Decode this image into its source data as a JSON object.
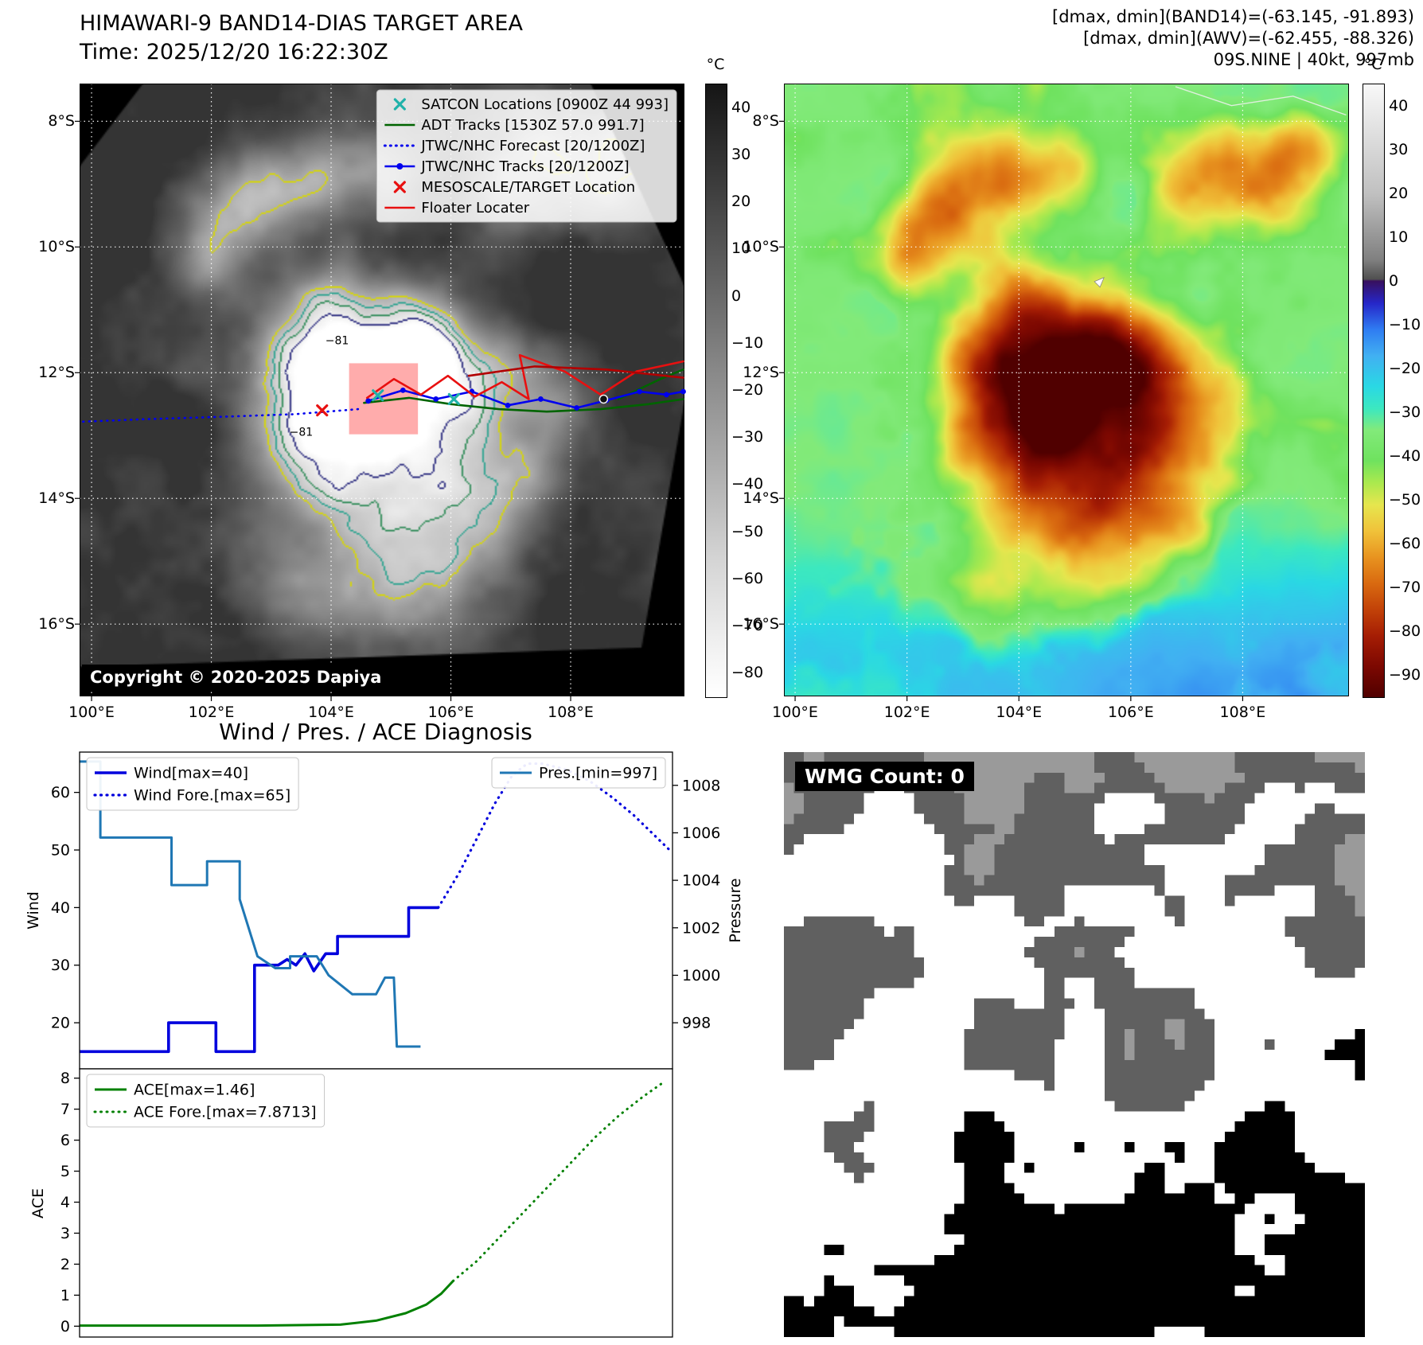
{
  "diagnosis_title": "Wind / Pres. / ACE Diagnosis",
  "geo": {
    "extent": {
      "lon": [
        99.8,
        109.9
      ],
      "lat": [
        7.4,
        17.15
      ]
    },
    "x_ticks": [
      {
        "lon": 100,
        "label": "100°E"
      },
      {
        "lon": 102,
        "label": "102°E"
      },
      {
        "lon": 104,
        "label": "104°E"
      },
      {
        "lon": 106,
        "label": "106°E"
      },
      {
        "lon": 108,
        "label": "108°E"
      }
    ],
    "y_ticks": [
      {
        "lat": 8,
        "label": "8°S"
      },
      {
        "lat": 10,
        "label": "10°S"
      },
      {
        "lat": 12,
        "label": "12°S"
      },
      {
        "lat": 14,
        "label": "14°S"
      },
      {
        "lat": 16,
        "label": "16°S"
      }
    ]
  },
  "band14_map": {
    "title": "HIMAWARI-9 BAND14-DIAS TARGET AREA",
    "time": "Time: 2025/12/20 16:22:30Z",
    "copyright": "Copyright © 2020-2025 Dapiya",
    "colorbar": {
      "unit": "°C",
      "ticks": [
        40,
        30,
        20,
        10,
        0,
        -10,
        -20,
        -30,
        -40,
        -50,
        -60,
        -70,
        -80
      ]
    },
    "legend": [
      {
        "label": "SATCON Locations [0900Z 44 993]",
        "type": "x",
        "color": "#20b2aa"
      },
      {
        "label": "ADT Tracks [1530Z 57.0 991.7]",
        "type": "line",
        "color": "#006400"
      },
      {
        "label": "JTWC/NHC Forecast [20/1200Z]",
        "type": "dotted",
        "color": "#0000ee"
      },
      {
        "label": "JTWC/NHC Tracks [20/1200Z]",
        "type": "line-dot",
        "color": "#0000ee"
      },
      {
        "label": "MESOSCALE/TARGET Location",
        "type": "x",
        "color": "#e81010"
      },
      {
        "label": "Floater Locater",
        "type": "line",
        "color": "#e81010"
      }
    ],
    "tracks": [
      {
        "name": "ADT track",
        "color": "#006400",
        "style": "solid",
        "points": [
          [
            104.55,
            12.48
          ],
          [
            105.3,
            12.4
          ],
          [
            106.0,
            12.5
          ],
          [
            106.8,
            12.58
          ],
          [
            107.6,
            12.62
          ],
          [
            108.5,
            12.58
          ],
          [
            109.3,
            12.5
          ],
          [
            109.88,
            12.42
          ]
        ]
      },
      {
        "name": "ADT track branch",
        "color": "#006400",
        "style": "solid",
        "points": [
          [
            108.8,
            12.42
          ],
          [
            109.5,
            12.1
          ],
          [
            109.88,
            11.95
          ]
        ]
      },
      {
        "name": "JTWC/NHC track",
        "color": "#0000ee",
        "style": "solid-dot",
        "points": [
          [
            104.62,
            12.45
          ],
          [
            105.2,
            12.28
          ],
          [
            105.75,
            12.42
          ],
          [
            106.35,
            12.3
          ],
          [
            106.95,
            12.52
          ],
          [
            107.5,
            12.42
          ],
          [
            108.1,
            12.56
          ],
          [
            108.6,
            12.44
          ],
          [
            109.15,
            12.3
          ],
          [
            109.6,
            12.35
          ],
          [
            109.88,
            12.3
          ]
        ]
      },
      {
        "name": "JTWC/NHC forecast",
        "color": "#0000ee",
        "style": "dotted",
        "points": [
          [
            104.45,
            12.58
          ],
          [
            103.4,
            12.66
          ],
          [
            102.2,
            12.7
          ],
          [
            100.9,
            12.74
          ],
          [
            99.82,
            12.78
          ]
        ]
      },
      {
        "name": "Floater path",
        "color": "#e81010",
        "style": "solid",
        "points": [
          [
            104.6,
            12.4
          ],
          [
            105.05,
            12.1
          ],
          [
            105.5,
            12.35
          ],
          [
            105.95,
            12.05
          ],
          [
            106.4,
            12.38
          ],
          [
            106.85,
            12.15
          ],
          [
            107.3,
            12.42
          ],
          [
            107.15,
            11.72
          ],
          [
            107.9,
            11.98
          ],
          [
            108.5,
            12.35
          ],
          [
            109.1,
            11.98
          ],
          [
            109.88,
            11.82
          ]
        ]
      },
      {
        "name": "Floater path 2",
        "color": "#b30000",
        "style": "solid",
        "points": [
          [
            106.3,
            12.05
          ],
          [
            107.4,
            11.9
          ],
          [
            108.6,
            11.95
          ],
          [
            109.88,
            12.08
          ]
        ]
      }
    ],
    "markers": [
      {
        "name": "SATCON location",
        "type": "x",
        "color": "#20b2aa",
        "points": [
          [
            104.78,
            12.36
          ],
          [
            106.05,
            12.42
          ]
        ]
      },
      {
        "name": "MESOSCALE/TARGET location",
        "type": "x",
        "color": "#e81010",
        "points": [
          [
            103.85,
            12.6
          ]
        ]
      },
      {
        "name": "current position",
        "type": "circle",
        "color": "#101010",
        "points": [
          [
            108.55,
            12.42
          ]
        ]
      }
    ],
    "target_box": {
      "lon": [
        104.3,
        105.45
      ],
      "lat": [
        11.85,
        12.98
      ]
    },
    "contour_labels": [
      {
        "text": "−81",
        "lon": 104.1,
        "lat": 11.55
      },
      {
        "text": "−81",
        "lon": 103.5,
        "lat": 13.0
      }
    ]
  },
  "awv_map": {
    "header": {
      "line1": "[dmax, dmin](BAND14)=(-63.145, -91.893)",
      "line2": "[dmax, dmin](AWV)=(-62.455, -88.326)",
      "line3": "09S.NINE | 40kt, 997mb"
    },
    "colorbar": {
      "unit": "°C",
      "ticks": [
        40,
        30,
        20,
        10,
        0,
        -10,
        -20,
        -30,
        -40,
        -50,
        -60,
        -70,
        -80,
        -90
      ]
    },
    "dmax_marker": {
      "lon": 105.35,
      "lat": 10.55
    }
  },
  "wmg": {
    "label": "WMG Count: 0"
  },
  "chart_data": [
    {
      "id": "wind_pres",
      "type": "line",
      "ylabel_left": "Wind",
      "ylabel_right": "Pressure",
      "x_range": [
        0,
        1
      ],
      "x_ticks": [],
      "y_left_ticks": [
        20,
        30,
        40,
        50,
        60
      ],
      "y_left_range": [
        12,
        67
      ],
      "y_right_ticks": [
        998,
        1000,
        1002,
        1004,
        1006,
        1008
      ],
      "y_right_range": [
        996.06,
        1009.4
      ],
      "series": [
        {
          "name": "Wind[max=40]",
          "axis": "left",
          "color": "#0000dd",
          "style": "solid",
          "width": 3.6,
          "points": [
            [
              0,
              15
            ],
            [
              0.15,
              15
            ],
            [
              0.15,
              20
            ],
            [
              0.23,
              20
            ],
            [
              0.23,
              15
            ],
            [
              0.295,
              15
            ],
            [
              0.295,
              30
            ],
            [
              0.335,
              30
            ],
            [
              0.35,
              31
            ],
            [
              0.365,
              30
            ],
            [
              0.38,
              32
            ],
            [
              0.395,
              29
            ],
            [
              0.415,
              32
            ],
            [
              0.435,
              32
            ],
            [
              0.435,
              35
            ],
            [
              0.555,
              35
            ],
            [
              0.555,
              40
            ],
            [
              0.605,
              40
            ]
          ]
        },
        {
          "name": "Wind Fore.[max=65]",
          "axis": "left",
          "color": "#0000dd",
          "style": "dotted",
          "width": 3.2,
          "points": [
            [
              0.605,
              40
            ],
            [
              0.64,
              46
            ],
            [
              0.67,
              52
            ],
            [
              0.7,
              58
            ],
            [
              0.73,
              63
            ],
            [
              0.755,
              65
            ],
            [
              0.78,
              65
            ],
            [
              0.82,
              64
            ],
            [
              0.86,
              62
            ],
            [
              0.9,
              59
            ],
            [
              0.935,
              56
            ],
            [
              0.965,
              53
            ],
            [
              0.995,
              50
            ]
          ]
        },
        {
          "name": "Pres.[min=997]",
          "axis": "right",
          "color": "#1f77b4",
          "style": "solid",
          "width": 3,
          "points": [
            [
              0,
              1009
            ],
            [
              0.035,
              1009
            ],
            [
              0.035,
              1005.8
            ],
            [
              0.155,
              1005.8
            ],
            [
              0.155,
              1003.8
            ],
            [
              0.215,
              1003.8
            ],
            [
              0.215,
              1004.8
            ],
            [
              0.27,
              1004.8
            ],
            [
              0.27,
              1003.2
            ],
            [
              0.3,
              1000.8
            ],
            [
              0.33,
              1000.3
            ],
            [
              0.355,
              1000.3
            ],
            [
              0.355,
              1000.8
            ],
            [
              0.4,
              1000.8
            ],
            [
              0.42,
              1000
            ],
            [
              0.46,
              999.2
            ],
            [
              0.5,
              999.2
            ],
            [
              0.515,
              999.9
            ],
            [
              0.53,
              999.9
            ],
            [
              0.535,
              997
            ],
            [
              0.575,
              997
            ]
          ]
        }
      ],
      "legends": [
        {
          "pos": "top-left",
          "entries": [
            "Wind[max=40]",
            "Wind Fore.[max=65]"
          ]
        },
        {
          "pos": "top-right",
          "entries": [
            "Pres.[min=997]"
          ]
        }
      ]
    },
    {
      "id": "ace",
      "type": "line",
      "ylabel_left": "ACE",
      "x_range": [
        0,
        1
      ],
      "x_ticks": [],
      "y_left_ticks": [
        0,
        1,
        2,
        3,
        4,
        5,
        6,
        7,
        8
      ],
      "y_left_range": [
        -0.35,
        8.3
      ],
      "series": [
        {
          "name": "ACE[max=1.46]",
          "axis": "left",
          "color": "#008000",
          "style": "solid",
          "width": 3,
          "points": [
            [
              0,
              0.02
            ],
            [
              0.3,
              0.02
            ],
            [
              0.44,
              0.05
            ],
            [
              0.5,
              0.18
            ],
            [
              0.55,
              0.42
            ],
            [
              0.585,
              0.7
            ],
            [
              0.61,
              1.05
            ],
            [
              0.63,
              1.46
            ]
          ]
        },
        {
          "name": "ACE Fore.[max=7.8713]",
          "axis": "left",
          "color": "#008000",
          "style": "dotted",
          "width": 3,
          "points": [
            [
              0.63,
              1.46
            ],
            [
              0.67,
              2.1
            ],
            [
              0.71,
              2.9
            ],
            [
              0.75,
              3.7
            ],
            [
              0.79,
              4.5
            ],
            [
              0.83,
              5.3
            ],
            [
              0.87,
              6.1
            ],
            [
              0.91,
              6.8
            ],
            [
              0.95,
              7.4
            ],
            [
              0.985,
              7.87
            ]
          ]
        }
      ],
      "legends": [
        {
          "pos": "top-left",
          "entries": [
            "ACE[max=1.46]",
            "ACE Fore.[max=7.8713]"
          ]
        }
      ]
    }
  ]
}
